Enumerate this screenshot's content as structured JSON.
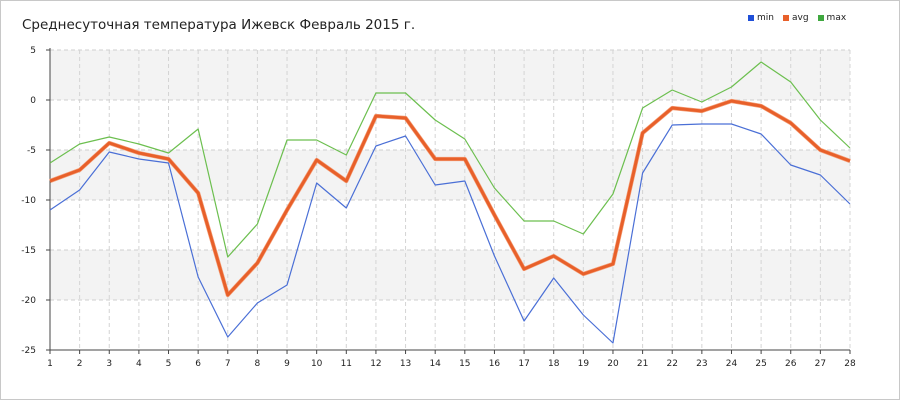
{
  "chart_data": {
    "type": "line",
    "title": "Среднесуточная температура Ижевск  Февраль 2015 г.",
    "xlabel": "",
    "ylabel": "",
    "categories": [
      "1",
      "2",
      "3",
      "4",
      "5",
      "6",
      "7",
      "8",
      "9",
      "10",
      "11",
      "12",
      "13",
      "14",
      "15",
      "16",
      "17",
      "18",
      "19",
      "20",
      "21",
      "22",
      "23",
      "24",
      "25",
      "26",
      "27",
      "28"
    ],
    "ylim": [
      -25,
      5
    ],
    "yticks": [
      "5",
      "0",
      "-5",
      "-10",
      "-15",
      "-20",
      "-25"
    ],
    "grid": true,
    "legend_position": "top-right",
    "series": [
      {
        "name": "min",
        "color": "#1f4fd8",
        "line_color": "#4a6fd6",
        "values": [
          -11,
          -9,
          -5.2,
          -5.9,
          -6.3,
          -17.7,
          -23.7,
          -20.3,
          -18.5,
          -8.3,
          -10.8,
          -4.6,
          -3.6,
          -8.5,
          -8.1,
          -15.6,
          -22.1,
          -17.8,
          -21.5,
          -24.3,
          -7.3,
          -2.5,
          -2.4,
          -2.4,
          -3.4,
          -6.5,
          -7.5,
          -10.4
        ]
      },
      {
        "name": "avg",
        "color": "#e8602a",
        "line_color": "#e8602a",
        "values": [
          -8.1,
          -7,
          -4.3,
          -5.3,
          -5.9,
          -9.3,
          -19.5,
          -16.3,
          -11,
          -6,
          -8.1,
          -1.6,
          -1.8,
          -5.9,
          -5.9,
          -11.5,
          -16.9,
          -15.6,
          -17.4,
          -16.4,
          -3.3,
          -0.8,
          -1.1,
          -0.1,
          -0.6,
          -2.3,
          -5,
          -6.1
        ]
      },
      {
        "name": "max",
        "color": "#3fa83f",
        "line_color": "#6cbf4f",
        "values": [
          -6.3,
          -4.4,
          -3.7,
          -4.4,
          -5.3,
          -2.9,
          -15.7,
          -12.4,
          -4,
          -4,
          -5.5,
          0.7,
          0.7,
          -2,
          -3.9,
          -8.8,
          -12.1,
          -12.1,
          -13.4,
          -9.4,
          -0.8,
          1,
          -0.2,
          1.3,
          3.8,
          1.8,
          -2,
          -4.8
        ]
      }
    ]
  }
}
